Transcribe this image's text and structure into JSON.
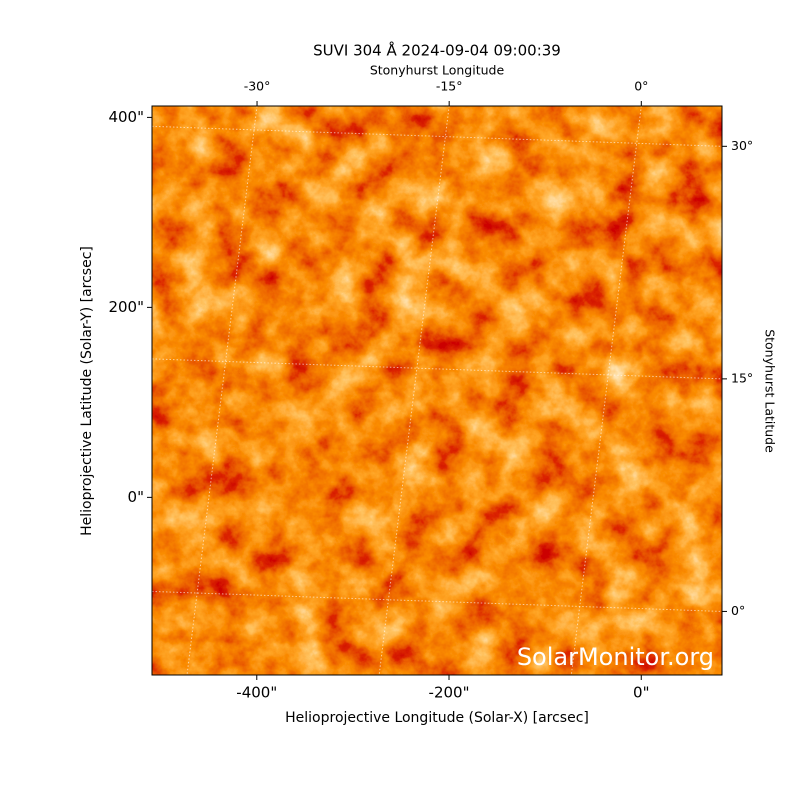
{
  "chart_data": {
    "type": "image",
    "title": "SUVI 304 Å 2024-09-04 09:00:39",
    "xlabel": "Helioprojective Longitude (Solar-X) [arcsec]",
    "ylabel": "Helioprojective Latitude (Solar-Y) [arcsec]",
    "x2label": "Stonyhurst Longitude",
    "y2label": "Stonyhurst Latitude",
    "watermark": "SolarMonitor.org",
    "xlim": [
      -509,
      84
    ],
    "ylim": [
      -187,
      412
    ],
    "xticks": [
      {
        "value": -400,
        "label": "-400\""
      },
      {
        "value": -200,
        "label": "-200\""
      },
      {
        "value": 0,
        "label": "0\""
      }
    ],
    "yticks": [
      {
        "value": 0,
        "label": "0\""
      },
      {
        "value": 200,
        "label": "200\""
      },
      {
        "value": 400,
        "label": "400\""
      }
    ],
    "x2lim": [
      -38.2,
      6.3
    ],
    "y2lim": [
      -4.1,
      32.6
    ],
    "x2ticks": [
      {
        "value": -30,
        "label": "-30°"
      },
      {
        "value": -15,
        "label": "-15°"
      },
      {
        "value": 0,
        "label": "0°"
      }
    ],
    "y2ticks": [
      {
        "value": 0,
        "label": "0°"
      },
      {
        "value": 15,
        "label": "15°"
      },
      {
        "value": 30,
        "label": "30°"
      }
    ],
    "grid": true
  }
}
